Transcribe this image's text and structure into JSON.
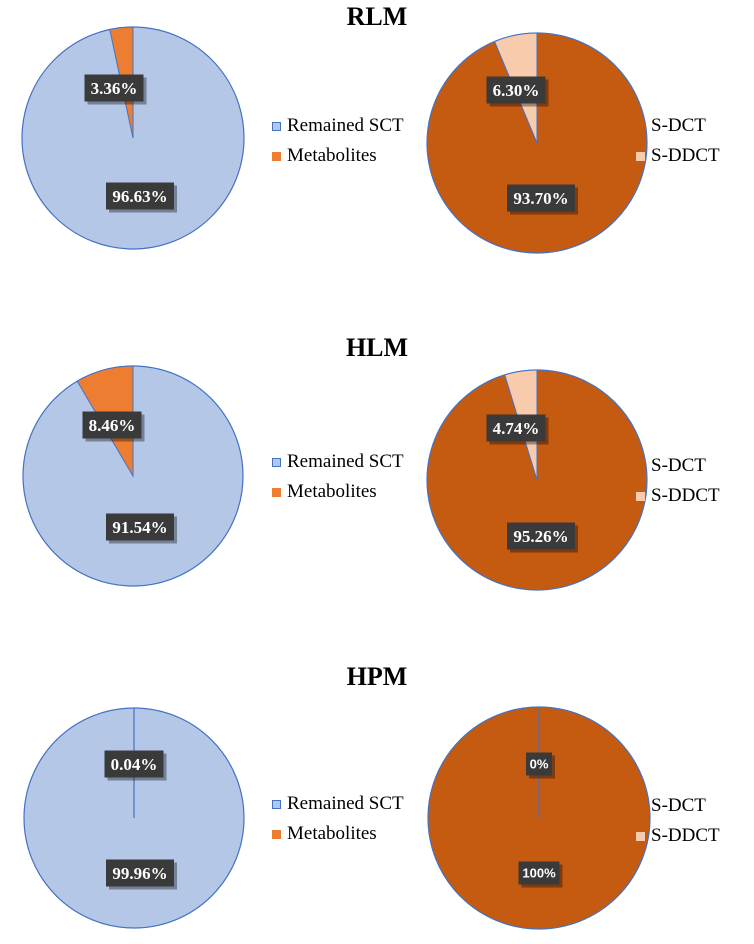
{
  "colors": {
    "remained_sct": "#b4c7e7",
    "metabolites": "#ed7d31",
    "s_dct": "#c55a11",
    "s_ddct": "#f8cbad",
    "pie_border": "#4472c4",
    "label_bg": "#3a3a3a",
    "label_text": "#ffffff"
  },
  "chart_data": [
    {
      "type": "pie",
      "title": "RLM",
      "categories": [
        "Remained SCT",
        "Metabolites"
      ],
      "values": [
        96.63,
        3.36
      ],
      "data_labels": [
        "96.63%",
        "3.36%"
      ],
      "legend_position": "right"
    },
    {
      "type": "pie",
      "title": "",
      "categories": [
        "S-DCT",
        "S-DDCT"
      ],
      "values": [
        93.7,
        6.3
      ],
      "data_labels": [
        "93.70%",
        "6.30%"
      ],
      "legend_position": "right"
    },
    {
      "type": "pie",
      "title": "HLM",
      "categories": [
        "Remained SCT",
        "Metabolites"
      ],
      "values": [
        91.54,
        8.46
      ],
      "data_labels": [
        "91.54%",
        "8.46%"
      ],
      "legend_position": "right"
    },
    {
      "type": "pie",
      "title": "",
      "categories": [
        "S-DCT",
        "S-DDCT"
      ],
      "values": [
        95.26,
        4.74
      ],
      "data_labels": [
        "95.26%",
        "4.74%"
      ],
      "legend_position": "right"
    },
    {
      "type": "pie",
      "title": "HPM",
      "categories": [
        "Remained SCT",
        "Metabolites"
      ],
      "values": [
        99.96,
        0.04
      ],
      "data_labels": [
        "99.96%",
        "0.04%"
      ],
      "legend_position": "right"
    },
    {
      "type": "pie",
      "title": "",
      "categories": [
        "S-DCT",
        "S-DDCT"
      ],
      "values": [
        100,
        0
      ],
      "data_labels": [
        "100%",
        "0%"
      ],
      "legend_position": "right"
    }
  ]
}
